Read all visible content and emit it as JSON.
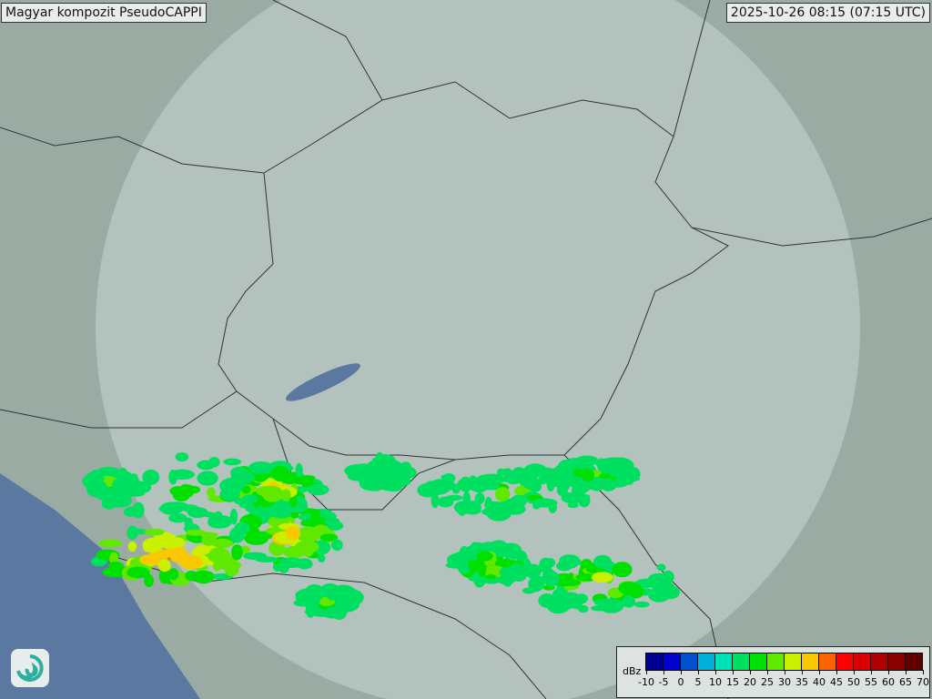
{
  "header": {
    "title": "Magyar kompozit  PseudoCAPPI",
    "timestamp": "2025-10-26 08:15 (07:15 UTC)"
  },
  "legend": {
    "unit": "dBz",
    "ticks": [
      "-10",
      "-5",
      "0",
      "5",
      "10",
      "15",
      "20",
      "25",
      "30",
      "35",
      "40",
      "45",
      "50",
      "55",
      "60",
      "65",
      "70"
    ],
    "colors": [
      "#000090",
      "#0000d0",
      "#0050d0",
      "#00b0d8",
      "#00e0b8",
      "#00e060",
      "#00e000",
      "#60e800",
      "#c8f000",
      "#f8c800",
      "#ff6000",
      "#ff0000",
      "#d80000",
      "#b00000",
      "#880000",
      "#600000"
    ]
  },
  "map": {
    "terrain_color": "#9aaba4",
    "coverage_color": "#c9d6d1",
    "water_color": "#5a78a0",
    "border_color": "#333333"
  },
  "logo": {
    "icon": "swirl-logo-icon"
  }
}
